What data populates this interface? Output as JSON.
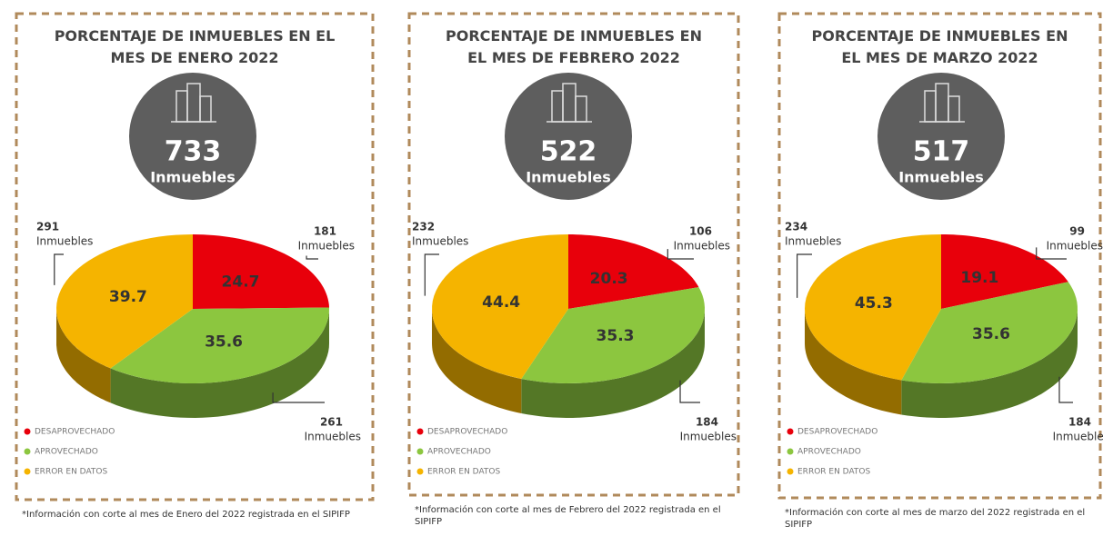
{
  "chart_data": [
    {
      "type": "pie",
      "title": "PORCENTAJE DE INMUEBLES EN EL MES DE ENERO 2022",
      "total": 733,
      "total_label": "Inmuebles",
      "categories": [
        "DESAPROVECHADO",
        "APROVECHADO",
        "ERROR EN DATOS"
      ],
      "values": [
        24.7,
        35.6,
        39.7
      ],
      "colors": [
        "#e8000b",
        "#8cc63f",
        "#f5b400"
      ],
      "counts": [
        181,
        261,
        291
      ],
      "count_label": "Inmuebles",
      "note": "*Información con corte al mes de Enero del 2022 registrada en el SIPIFP"
    },
    {
      "type": "pie",
      "title": "PORCENTAJE DE INMUEBLES EN EL MES DE FEBRERO 2022",
      "total": 522,
      "total_label": "Inmuebles",
      "categories": [
        "DESAPROVECHADO",
        "APROVECHADO",
        "ERROR EN DATOS"
      ],
      "values": [
        20.3,
        35.3,
        44.4
      ],
      "colors": [
        "#e8000b",
        "#8cc63f",
        "#f5b400"
      ],
      "counts": [
        106,
        184,
        232
      ],
      "count_label": "Inmuebles",
      "note": "*Información con corte al mes de Febrero del 2022 registrada en el SIPIFP"
    },
    {
      "type": "pie",
      "title": "PORCENTAJE DE INMUEBLES EN EL MES DE MARZO 2022",
      "total": 517,
      "total_label": "Inmuebles",
      "categories": [
        "DESAPROVECHADO",
        "APROVECHADO",
        "ERROR EN DATOS"
      ],
      "values": [
        19.1,
        35.6,
        45.3
      ],
      "colors": [
        "#e8000b",
        "#8cc63f",
        "#f5b400"
      ],
      "counts": [
        99,
        184,
        234
      ],
      "count_label": "Inmuebles",
      "note": "*Información con corte al mes de marzo del 2022 registrada en el SIPIFP"
    }
  ]
}
